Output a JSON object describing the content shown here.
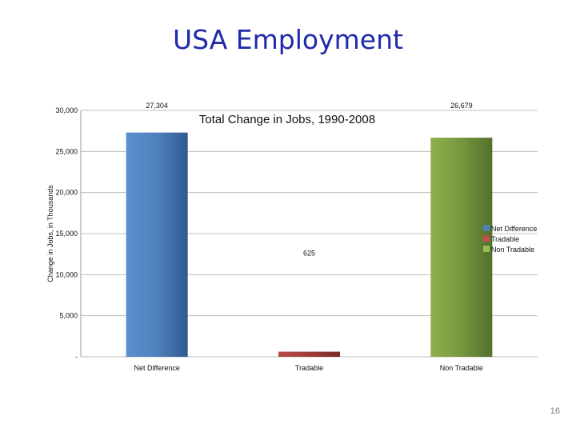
{
  "slide": {
    "title": "USA Employment",
    "page_number": "16"
  },
  "chart_data": {
    "type": "bar",
    "title": "Total Change in Jobs, 1990-2008",
    "xlabel": "",
    "ylabel": "Change in Jobs, in Thousands",
    "ylim": [
      0,
      30000
    ],
    "y_ticks": [
      {
        "value": 0,
        "label": "-"
      },
      {
        "value": 5000,
        "label": "5,000"
      },
      {
        "value": 10000,
        "label": "10,000"
      },
      {
        "value": 15000,
        "label": "15,000"
      },
      {
        "value": 20000,
        "label": "20,000"
      },
      {
        "value": 25000,
        "label": "25,000"
      },
      {
        "value": 30000,
        "label": "30,000"
      }
    ],
    "grid": true,
    "legend_position": "right",
    "categories": [
      "Net Difference",
      "Tradable",
      "Non Tradable"
    ],
    "values": [
      27304,
      625,
      26679
    ],
    "data_labels": [
      "27,304",
      "625",
      "26,679"
    ],
    "colors": [
      "#4f81bd",
      "#c0504d",
      "#9bbb59"
    ],
    "legend": [
      "Net Difference",
      "Tradable",
      "Non Tradable"
    ]
  }
}
